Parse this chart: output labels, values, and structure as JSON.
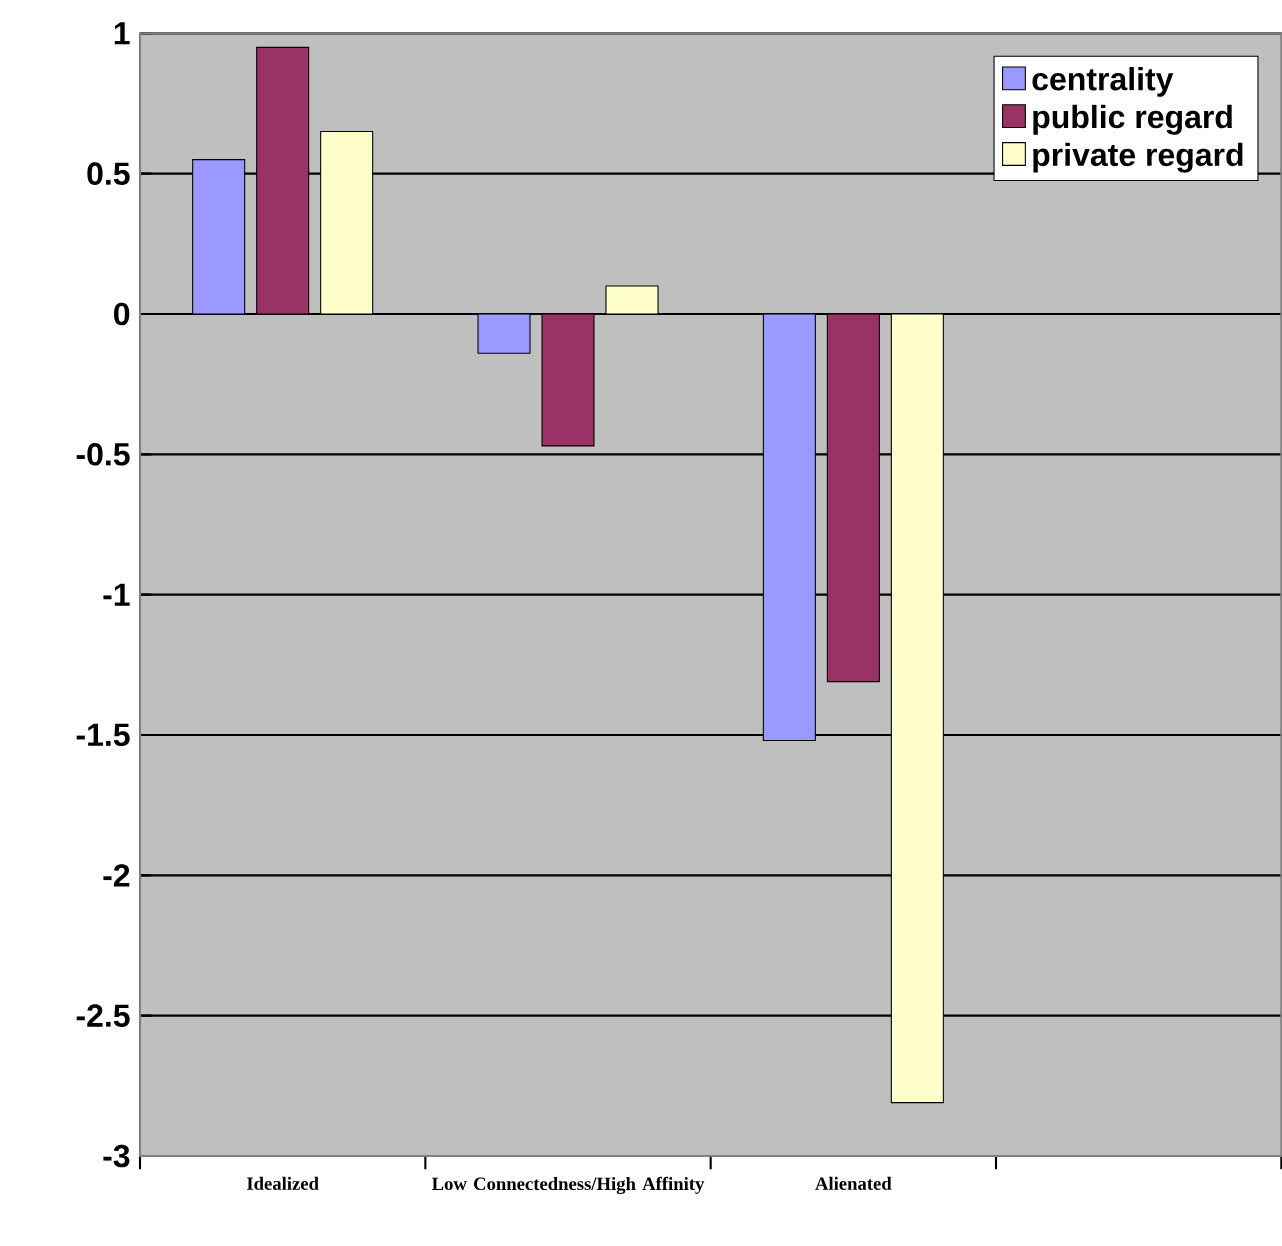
{
  "chart_data": {
    "type": "bar",
    "categories": [
      "Idealized",
      "Low Connectedness/High Affinity",
      "Alienated",
      null
    ],
    "series": [
      {
        "name": "centrality",
        "color": "#9999ff",
        "values": [
          0.55,
          -0.14,
          -1.52,
          null
        ]
      },
      {
        "name": "public regard",
        "color": "#993366",
        "values": [
          0.95,
          -0.47,
          -1.31,
          null
        ]
      },
      {
        "name": "private regard",
        "color": "#ffffcc",
        "values": [
          0.65,
          0.1,
          -2.81,
          null
        ]
      }
    ],
    "ylim": [
      -3,
      1
    ],
    "yticks": [
      -3,
      -2.5,
      -2,
      -1.5,
      -1,
      -0.5,
      0,
      0.5,
      1
    ],
    "grid": "y",
    "legend": "top right"
  }
}
